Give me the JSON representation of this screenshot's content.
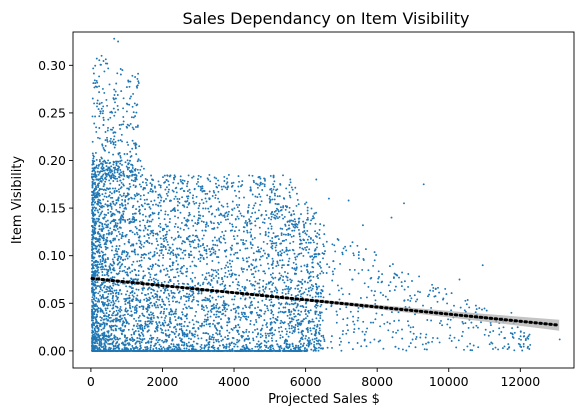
{
  "chart_data": {
    "type": "scatter",
    "title": "Sales Dependancy on Item Visibility",
    "xlabel": "Projected Sales $",
    "ylabel": "Item Visibility",
    "xlim": [
      -500,
      13500
    ],
    "ylim": [
      -0.018,
      0.335
    ],
    "x_ticks": [
      0,
      2000,
      4000,
      6000,
      8000,
      10000,
      12000
    ],
    "x_tick_labels": [
      "0",
      "2000",
      "4000",
      "6000",
      "8000",
      "10000",
      "12000"
    ],
    "y_ticks": [
      0.0,
      0.05,
      0.1,
      0.15,
      0.2,
      0.25,
      0.3
    ],
    "y_tick_labels": [
      "0.00",
      "0.05",
      "0.10",
      "0.15",
      "0.20",
      "0.25",
      "0.30"
    ],
    "grid": false,
    "marker_color": "#1f77b4",
    "regression": {
      "line_style": "dotted",
      "line_color": "#000000",
      "band_color": "#b0b0b0",
      "points": [
        {
          "x": 33,
          "y": 0.076
        },
        {
          "x": 13087,
          "y": 0.027
        }
      ]
    },
    "points": [
      {
        "x": 300,
        "y": 0.31
      },
      {
        "x": 650,
        "y": 0.328
      },
      {
        "x": 760,
        "y": 0.325
      },
      {
        "x": 420,
        "y": 0.302
      },
      {
        "x": 880,
        "y": 0.295
      },
      {
        "x": 520,
        "y": 0.28
      },
      {
        "x": 700,
        "y": 0.265
      },
      {
        "x": 250,
        "y": 0.26
      },
      {
        "x": 1180,
        "y": 0.27
      },
      {
        "x": 350,
        "y": 0.245
      },
      {
        "x": 900,
        "y": 0.238
      },
      {
        "x": 150,
        "y": 0.23
      },
      {
        "x": 600,
        "y": 0.22
      },
      {
        "x": 1350,
        "y": 0.215
      },
      {
        "x": 9300,
        "y": 0.175
      },
      {
        "x": 10950,
        "y": 0.09
      },
      {
        "x": 11750,
        "y": 0.04
      },
      {
        "x": 12250,
        "y": 0.002
      },
      {
        "x": 13100,
        "y": 0.012
      },
      {
        "x": 10300,
        "y": 0.075
      },
      {
        "x": 9850,
        "y": 0.055
      },
      {
        "x": 8400,
        "y": 0.14
      },
      {
        "x": 8750,
        "y": 0.155
      },
      {
        "x": 7600,
        "y": 0.132
      },
      {
        "x": 7200,
        "y": 0.158
      },
      {
        "x": 6300,
        "y": 0.18
      },
      {
        "x": 6650,
        "y": 0.16
      }
    ]
  }
}
